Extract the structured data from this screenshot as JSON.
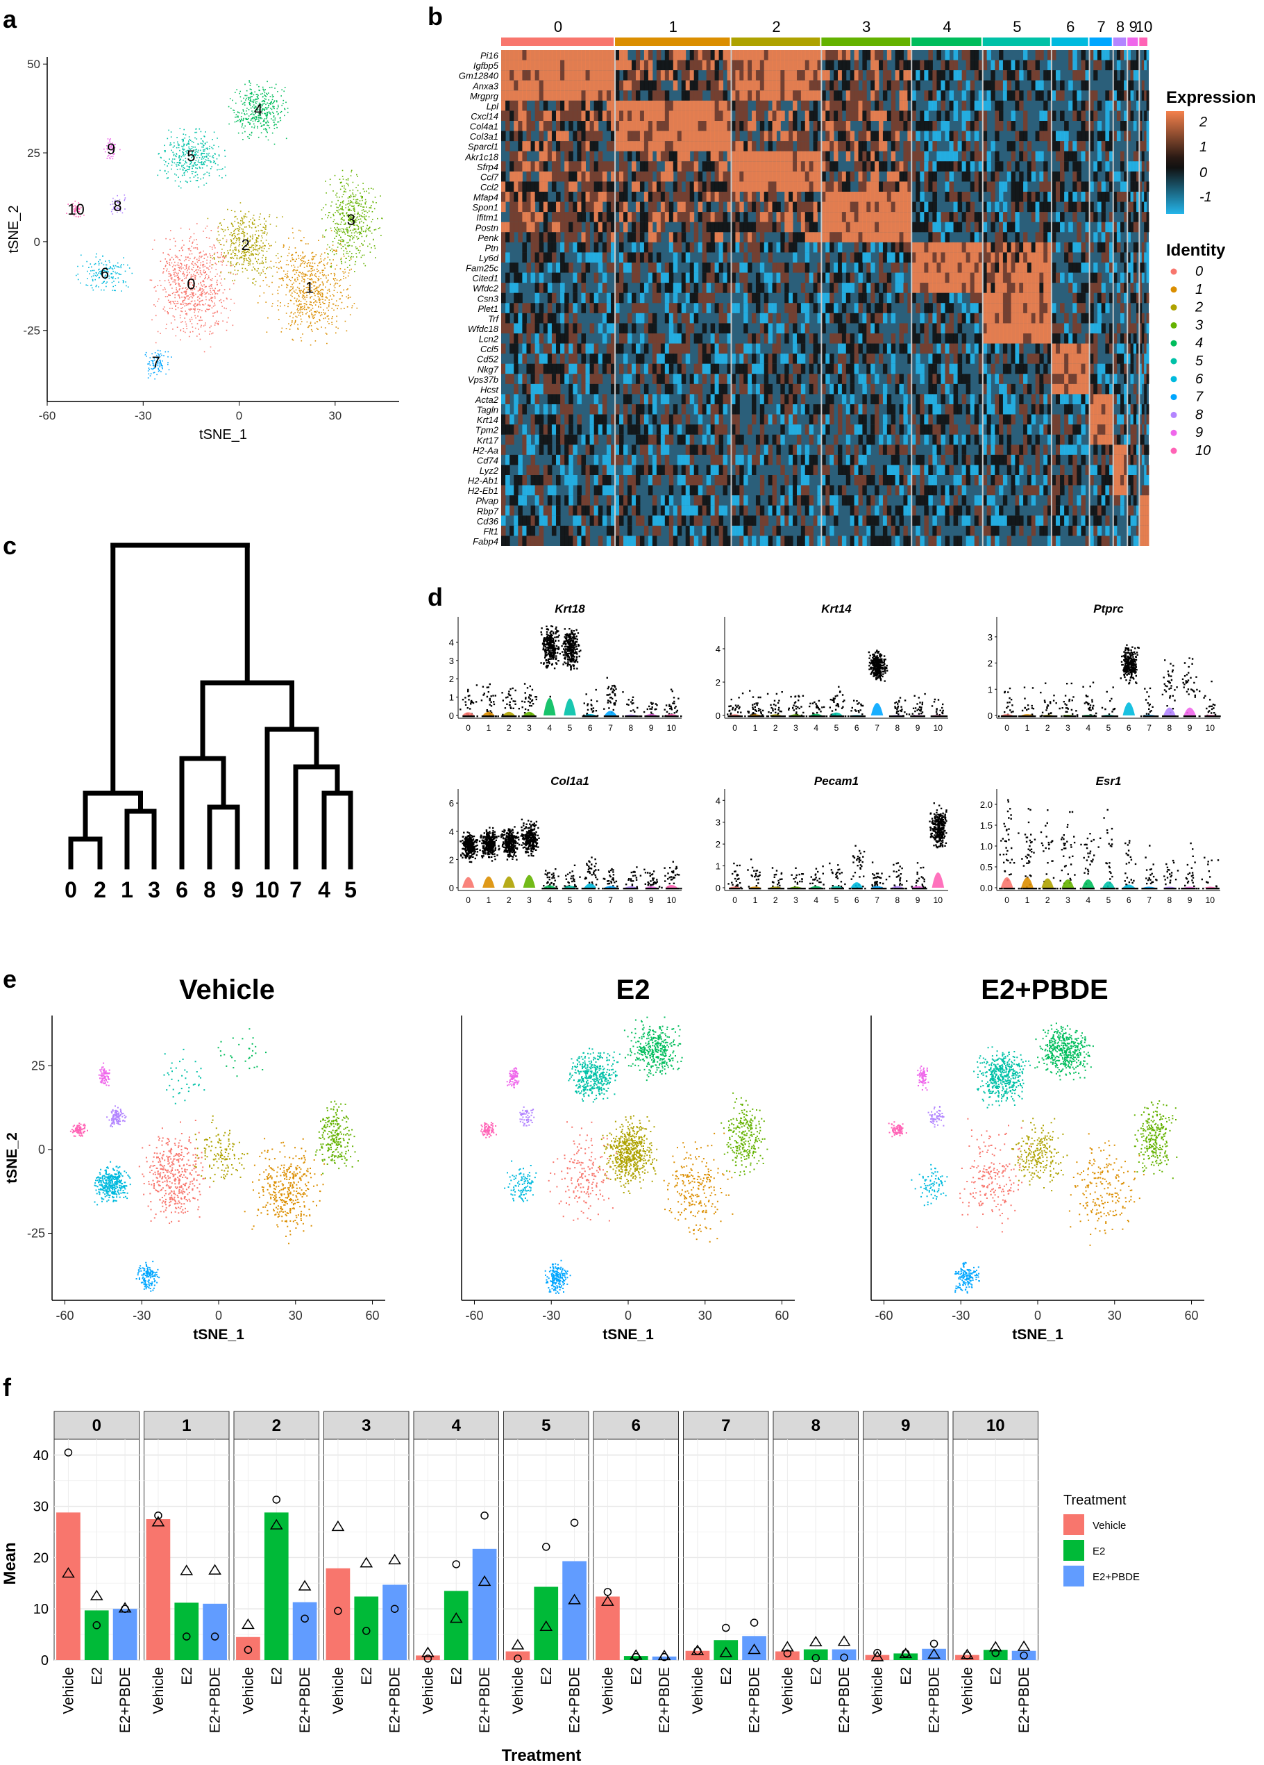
{
  "panels": {
    "a": "a",
    "b": "b",
    "c": "c",
    "d": "d",
    "e": "e",
    "f": "f"
  },
  "clusters": [
    "0",
    "1",
    "2",
    "3",
    "4",
    "5",
    "6",
    "7",
    "8",
    "9",
    "10"
  ],
  "colors": {
    "cluster": [
      "#f8766d",
      "#db8e00",
      "#aea200",
      "#64b200",
      "#00bd5c",
      "#00c1a7",
      "#00bade",
      "#00a6ff",
      "#b385ff",
      "#ef67eb",
      "#ff63b6"
    ],
    "vehicle": "#f8766d",
    "e2": "#00ba38",
    "e2pbde": "#619cff",
    "heat_high": "#f4814c",
    "heat_mid": "#111111",
    "heat_low": "#24b5ea",
    "heat_bg": "#2b5f7a"
  },
  "chart_data": [
    {
      "type": "scatter",
      "name": "panel-a",
      "xlabel": "tSNE_1",
      "ylabel": "tSNE_2",
      "xlim": [
        -60,
        50
      ],
      "ylim": [
        -45,
        52
      ],
      "xticks": [
        "-60",
        "-30",
        "0",
        "30"
      ],
      "yticks": [
        "50",
        "25",
        "0",
        "-25"
      ],
      "clusters": [
        {
          "label": "0",
          "x": -15,
          "y": -12
        },
        {
          "label": "1",
          "x": 22,
          "y": -13
        },
        {
          "label": "2",
          "x": 2,
          "y": -1
        },
        {
          "label": "3",
          "x": 35,
          "y": 6
        },
        {
          "label": "4",
          "x": 6,
          "y": 37
        },
        {
          "label": "5",
          "x": -15,
          "y": 24
        },
        {
          "label": "6",
          "x": -42,
          "y": -9
        },
        {
          "label": "7",
          "x": -26,
          "y": -34
        },
        {
          "label": "8",
          "x": -38,
          "y": 10
        },
        {
          "label": "9",
          "x": -40,
          "y": 26
        },
        {
          "label": "10",
          "x": -51,
          "y": 9
        }
      ]
    },
    {
      "type": "heatmap",
      "name": "panel-b",
      "legend_title": "Expression",
      "legend_ticks": [
        "2",
        "1",
        "0",
        "-1"
      ],
      "identity_title": "Identity",
      "column_groups": [
        {
          "label": "0",
          "fraction": 0.24
        },
        {
          "label": "1",
          "fraction": 0.245
        },
        {
          "label": "2",
          "fraction": 0.19
        },
        {
          "label": "3",
          "fraction": 0.19
        },
        {
          "label": "4",
          "fraction": 0.15
        },
        {
          "label": "5",
          "fraction": 0.145
        },
        {
          "label": "6",
          "fraction": 0.08
        },
        {
          "label": "7",
          "fraction": 0.05
        },
        {
          "label": "8",
          "fraction": 0.03
        },
        {
          "label": "9",
          "fraction": 0.025
        },
        {
          "label": "10",
          "fraction": 0.02
        }
      ],
      "genes": [
        "Pi16",
        "Igfbp5",
        "Gm12840",
        "Anxa3",
        "Mrgprg",
        "Lpl",
        "Cxcl14",
        "Col4a1",
        "Col3a1",
        "Sparcl1",
        "Akr1c18",
        "Sfrp4",
        "Ccl7",
        "Ccl2",
        "Mfap4",
        "Spon1",
        "Ifitm1",
        "Postn",
        "Penk",
        "Ptn",
        "Ly6d",
        "Fam25c",
        "Cited1",
        "Wfdc2",
        "Csn3",
        "Plet1",
        "Trf",
        "Wfdc18",
        "Lcn2",
        "Ccl5",
        "Cd52",
        "Nkg7",
        "Vps37b",
        "Hcst",
        "Acta2",
        "Tagln",
        "Krt14",
        "Tpm2",
        "Krt17",
        "H2-Aa",
        "Cd74",
        "Lyz2",
        "H2-Ab1",
        "H2-Eb1",
        "Plvap",
        "Rbp7",
        "Cd36",
        "Flt1",
        "Fabp4"
      ],
      "gene_cluster": [
        0,
        0,
        0,
        0,
        0,
        1,
        1,
        1,
        1,
        1,
        2,
        2,
        2,
        2,
        3,
        3,
        3,
        3,
        3,
        4,
        4,
        4,
        4,
        4,
        5,
        5,
        5,
        5,
        5,
        6,
        6,
        6,
        6,
        6,
        7,
        7,
        7,
        7,
        7,
        8,
        8,
        8,
        8,
        8,
        10,
        10,
        10,
        10,
        10
      ]
    },
    {
      "type": "dendrogram",
      "name": "panel-c",
      "leaves": [
        "0",
        "2",
        "1",
        "3",
        "6",
        "8",
        "9",
        "10",
        "7",
        "4",
        "5"
      ]
    },
    {
      "type": "violin",
      "name": "panel-d",
      "genes": [
        {
          "gene": "Krt18",
          "yticks": [
            "0",
            "1",
            "2",
            "3",
            "4"
          ],
          "ymax": 5.0,
          "means": [
            0.7,
            0.8,
            0.8,
            0.8,
            3.8,
            3.7,
            0.3,
            1.0,
            0.2,
            0.3,
            0.3
          ]
        },
        {
          "gene": "Krt14",
          "yticks": [
            "0",
            "2",
            "4"
          ],
          "ymax": 5.5,
          "means": [
            0.3,
            0.3,
            0.3,
            0.3,
            0.4,
            0.7,
            0.1,
            3.0,
            0.1,
            0.1,
            0.1
          ]
        },
        {
          "gene": "Ptprc",
          "yticks": [
            "0",
            "1",
            "2",
            "3"
          ],
          "ymax": 3.5,
          "means": [
            0.2,
            0.2,
            0.1,
            0.1,
            0.1,
            0.1,
            2.0,
            0.1,
            1.2,
            1.2,
            0.1
          ]
        },
        {
          "gene": "Col1a1",
          "yticks": [
            "0",
            "2",
            "4",
            "6"
          ],
          "ymax": 6.5,
          "means": [
            3.0,
            3.2,
            3.2,
            3.6,
            0.7,
            0.6,
            1.2,
            0.5,
            0.4,
            0.4,
            0.8
          ]
        },
        {
          "gene": "Pecam1",
          "yticks": [
            "0",
            "1",
            "2",
            "3",
            "4"
          ],
          "ymax": 4.2,
          "means": [
            0.2,
            0.2,
            0.2,
            0.2,
            0.3,
            0.3,
            1.0,
            0.3,
            0.3,
            0.3,
            2.8
          ]
        },
        {
          "gene": "Esr1",
          "yticks": [
            "0.0",
            "0.5",
            "1.0",
            "1.5",
            "2.0"
          ],
          "ymax": 2.2,
          "means": [
            1.0,
            1.0,
            0.9,
            0.8,
            0.8,
            0.6,
            0.3,
            0.1,
            0.1,
            0.1,
            0.1
          ]
        }
      ]
    },
    {
      "type": "scatter",
      "name": "panel-e",
      "xlabel": "tSNE_1",
      "ylabel": "tSNE_2",
      "xlim": [
        -65,
        65
      ],
      "ylim": [
        -45,
        40
      ],
      "xticks": [
        "-60",
        "-30",
        "0",
        "30",
        "60"
      ],
      "yticks": [
        "25",
        "0",
        "-25"
      ],
      "conditions": [
        {
          "title": "Vehicle",
          "weights": [
            1.6,
            1.4,
            0.5,
            0.9,
            0.12,
            0.15,
            1.3,
            0.5,
            0.4,
            0.3,
            0.3
          ]
        },
        {
          "title": "E2",
          "weights": [
            0.7,
            0.9,
            2.2,
            1.0,
            1.4,
            1.5,
            0.4,
            0.7,
            0.2,
            0.3,
            0.3
          ]
        },
        {
          "title": "E2+PBDE",
          "weights": [
            0.8,
            0.8,
            0.9,
            1.0,
            1.7,
            1.7,
            0.3,
            0.6,
            0.2,
            0.3,
            0.3
          ]
        }
      ]
    },
    {
      "type": "bar",
      "name": "panel-f",
      "xlabel": "Treatment",
      "ylabel": "Mean",
      "ylim": [
        0,
        42
      ],
      "yticks": [
        "0",
        "10",
        "20",
        "30",
        "40"
      ],
      "categories": [
        "Vehicle",
        "E2",
        "E2+PBDE"
      ],
      "legend_title": "Treatment",
      "legend_entries": [
        "Vehicle",
        "E2",
        "E2+PBDE"
      ],
      "facets": [
        {
          "label": "0",
          "values": [
            28.8,
            9.7,
            10.0
          ],
          "circle": [
            40.5,
            6.8,
            10.0
          ],
          "triangle": [
            17.0,
            12.6,
            10.2
          ]
        },
        {
          "label": "1",
          "values": [
            27.5,
            11.2,
            11.0
          ],
          "circle": [
            28.2,
            4.6,
            4.6
          ],
          "triangle": [
            27.0,
            17.5,
            17.6
          ]
        },
        {
          "label": "2",
          "values": [
            4.5,
            28.8,
            11.3
          ],
          "circle": [
            2.0,
            31.3,
            8.1
          ],
          "triangle": [
            7.0,
            26.4,
            14.5
          ]
        },
        {
          "label": "3",
          "values": [
            17.9,
            12.4,
            14.7
          ],
          "circle": [
            9.6,
            5.7,
            10.0
          ],
          "triangle": [
            26.1,
            19.0,
            19.6
          ]
        },
        {
          "label": "4",
          "values": [
            0.9,
            13.5,
            21.7
          ],
          "circle": [
            0.3,
            18.7,
            28.2
          ],
          "triangle": [
            1.5,
            8.2,
            15.4
          ]
        },
        {
          "label": "5",
          "values": [
            1.7,
            14.3,
            19.3
          ],
          "circle": [
            0.3,
            22.1,
            26.8
          ],
          "triangle": [
            3.0,
            6.6,
            11.8
          ]
        },
        {
          "label": "6",
          "values": [
            12.4,
            0.8,
            0.7
          ],
          "circle": [
            13.3,
            0.6,
            0.6
          ],
          "triangle": [
            11.5,
            1.0,
            0.9
          ]
        },
        {
          "label": "7",
          "values": [
            1.8,
            3.9,
            4.7
          ],
          "circle": [
            1.8,
            6.3,
            7.3
          ],
          "triangle": [
            1.9,
            1.5,
            2.1
          ]
        },
        {
          "label": "8",
          "values": [
            1.7,
            2.1,
            2.1
          ],
          "circle": [
            1.3,
            0.4,
            0.5
          ],
          "triangle": [
            2.6,
            3.6,
            3.7
          ]
        },
        {
          "label": "9",
          "values": [
            1.0,
            1.3,
            2.2
          ],
          "circle": [
            1.4,
            1.3,
            3.2
          ],
          "triangle": [
            0.7,
            1.3,
            1.2
          ]
        },
        {
          "label": "10",
          "values": [
            1.0,
            2.0,
            1.8
          ],
          "circle": [
            0.9,
            1.4,
            0.9
          ],
          "triangle": [
            1.1,
            2.6,
            2.7
          ]
        }
      ]
    }
  ]
}
